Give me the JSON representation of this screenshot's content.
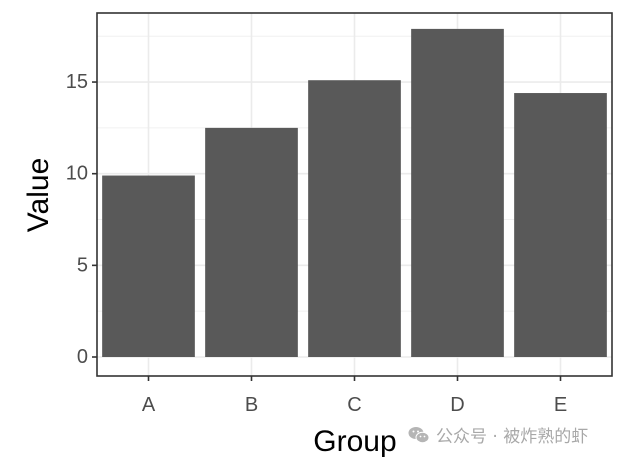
{
  "chart_data": {
    "type": "bar",
    "title": "",
    "xlabel": "Group",
    "ylabel": "Value",
    "categories": [
      "A",
      "B",
      "C",
      "D",
      "E"
    ],
    "values": [
      9.9,
      12.5,
      15.1,
      17.9,
      14.4
    ],
    "ylim": [
      -0.9,
      18.8
    ],
    "yticks": [
      0,
      5,
      10,
      15
    ],
    "grid": true,
    "theme": "bw",
    "bar_color": "#595959",
    "legend": null
  },
  "watermark": {
    "text": "公众号 · 被炸熟的虾",
    "icon": "wechat-icon"
  }
}
